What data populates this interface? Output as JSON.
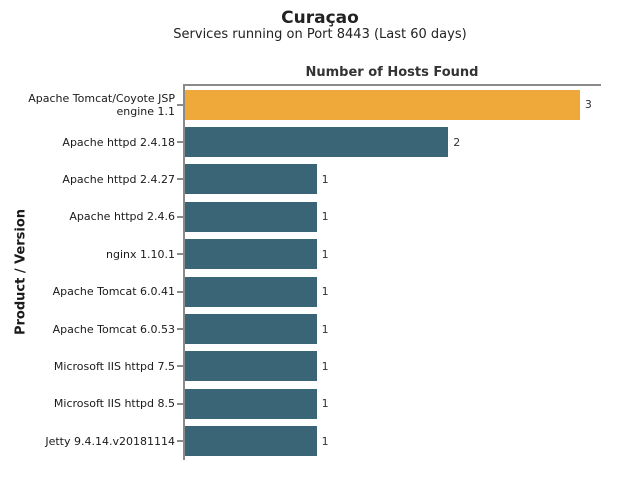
{
  "header": {
    "title": "Curaçao",
    "subtitle": "Services running on Port 8443 (Last 60 days)"
  },
  "chart_data": {
    "type": "bar",
    "orientation": "horizontal",
    "title": "Number of Hosts Found",
    "xlabel": "",
    "ylabel": "Product / Version",
    "xlim": [
      0,
      3.16
    ],
    "grid": false,
    "legend": false,
    "categories": [
      "Apache Tomcat/Coyote JSP engine 1.1",
      "Apache httpd 2.4.18",
      "Apache httpd 2.4.27",
      "Apache httpd 2.4.6",
      "nginx 1.10.1",
      "Apache Tomcat 6.0.41",
      "Apache Tomcat 6.0.53",
      "Microsoft IIS httpd 7.5",
      "Microsoft IIS httpd 8.5",
      "Jetty 9.4.14.v20181114"
    ],
    "values": [
      3,
      2,
      1,
      1,
      1,
      1,
      1,
      1,
      1,
      1
    ],
    "value_labels": [
      "3",
      "2",
      "1",
      "1",
      "1",
      "1",
      "1",
      "1",
      "1",
      "1"
    ],
    "bar_colors": [
      "#EFA93B",
      "#3A6577",
      "#3A6577",
      "#3A6577",
      "#3A6577",
      "#3A6577",
      "#3A6577",
      "#3A6577",
      "#3A6577",
      "#3A6577"
    ],
    "colors": {
      "highlight_bar": "#EFA93B",
      "bar": "#3A6577",
      "axis": "#8a8a8a",
      "text": "#1a1a1a"
    }
  }
}
